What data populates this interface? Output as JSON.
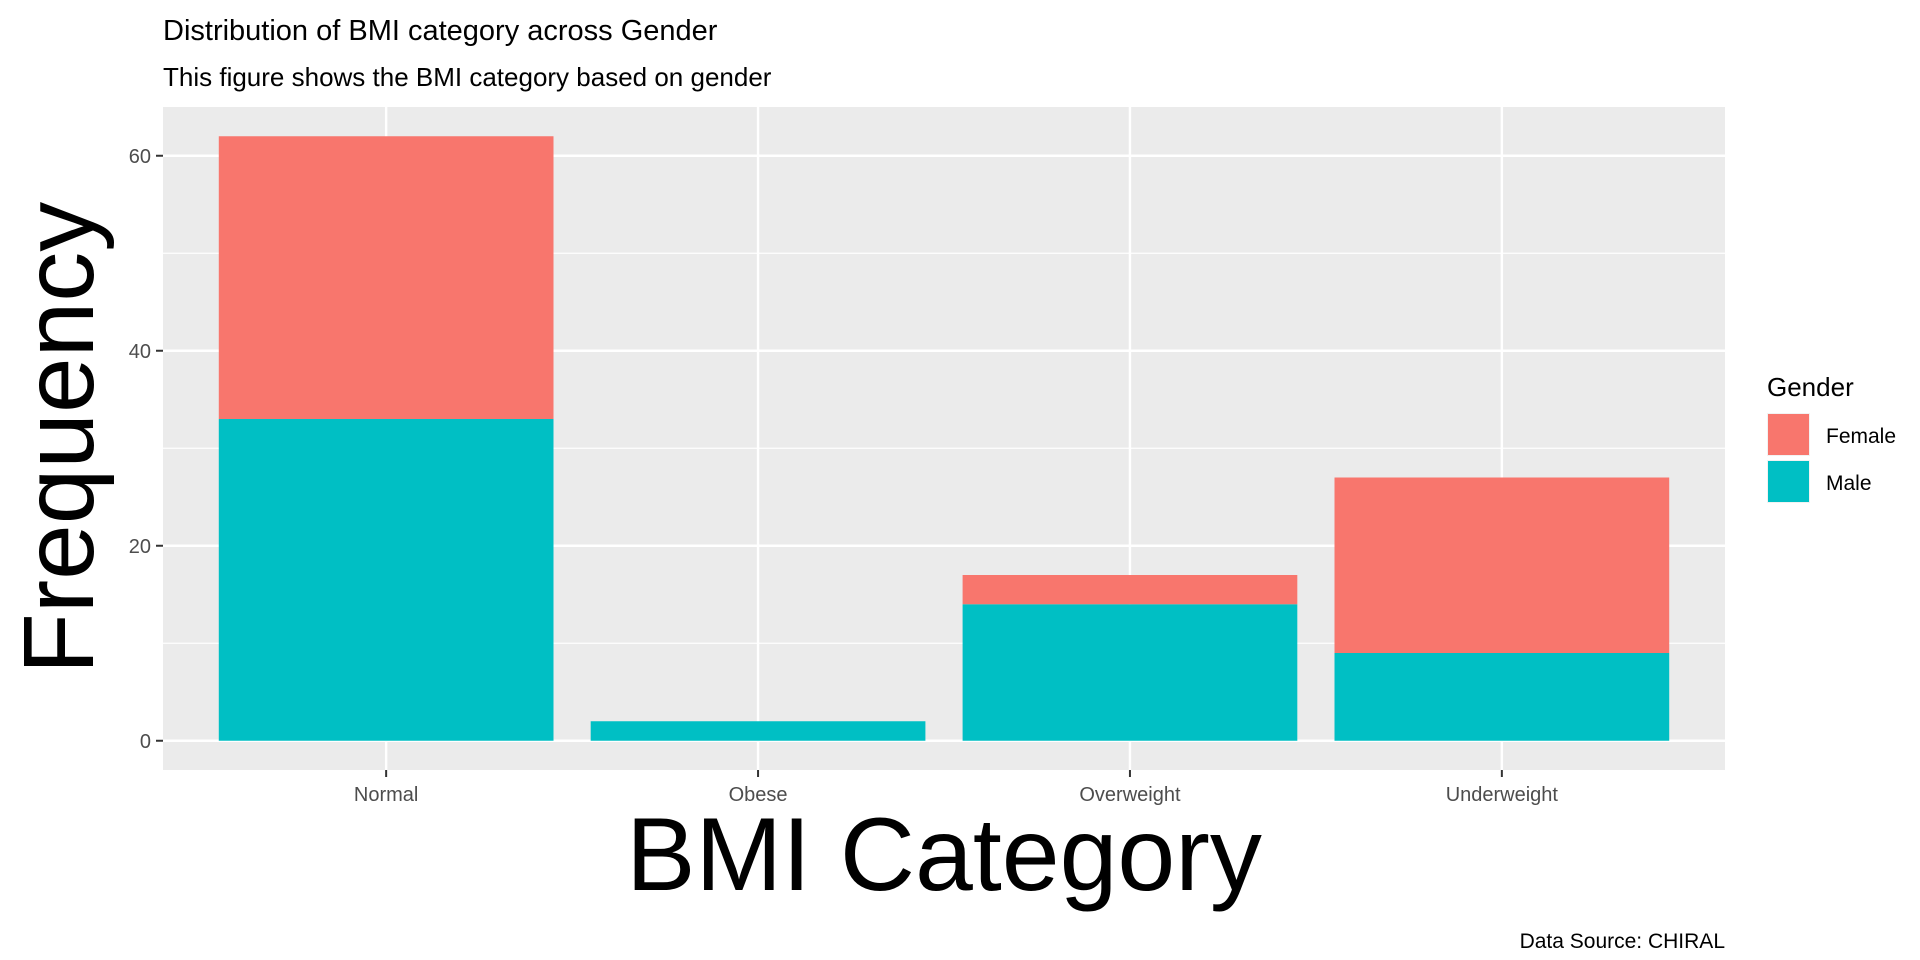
{
  "chart_data": {
    "type": "bar",
    "stacked": true,
    "title": "Distribution of BMI category across Gender",
    "subtitle": "This figure shows the BMI category based on gender",
    "xlabel": "BMI Category",
    "ylabel": "Frequency",
    "caption": "Data Source: CHIRAL",
    "categories": [
      "Normal",
      "Obese",
      "Overweight",
      "Underweight"
    ],
    "series": [
      {
        "name": "Male",
        "color": "#00BFC4",
        "values": [
          33,
          2,
          14,
          9
        ]
      },
      {
        "name": "Female",
        "color": "#F8766D",
        "values": [
          29,
          0,
          3,
          18
        ]
      }
    ],
    "ylim": [
      -3,
      65
    ],
    "yticks": [
      "0",
      "20",
      "40",
      "60"
    ],
    "legend": {
      "title": "Gender",
      "placement": "right",
      "items": [
        {
          "label": "Female",
          "color": "#F8766D"
        },
        {
          "label": "Male",
          "color": "#00BFC4"
        }
      ]
    },
    "grid": true,
    "panel_color": "#EBEBEB",
    "grid_color": "#FFFFFF"
  }
}
